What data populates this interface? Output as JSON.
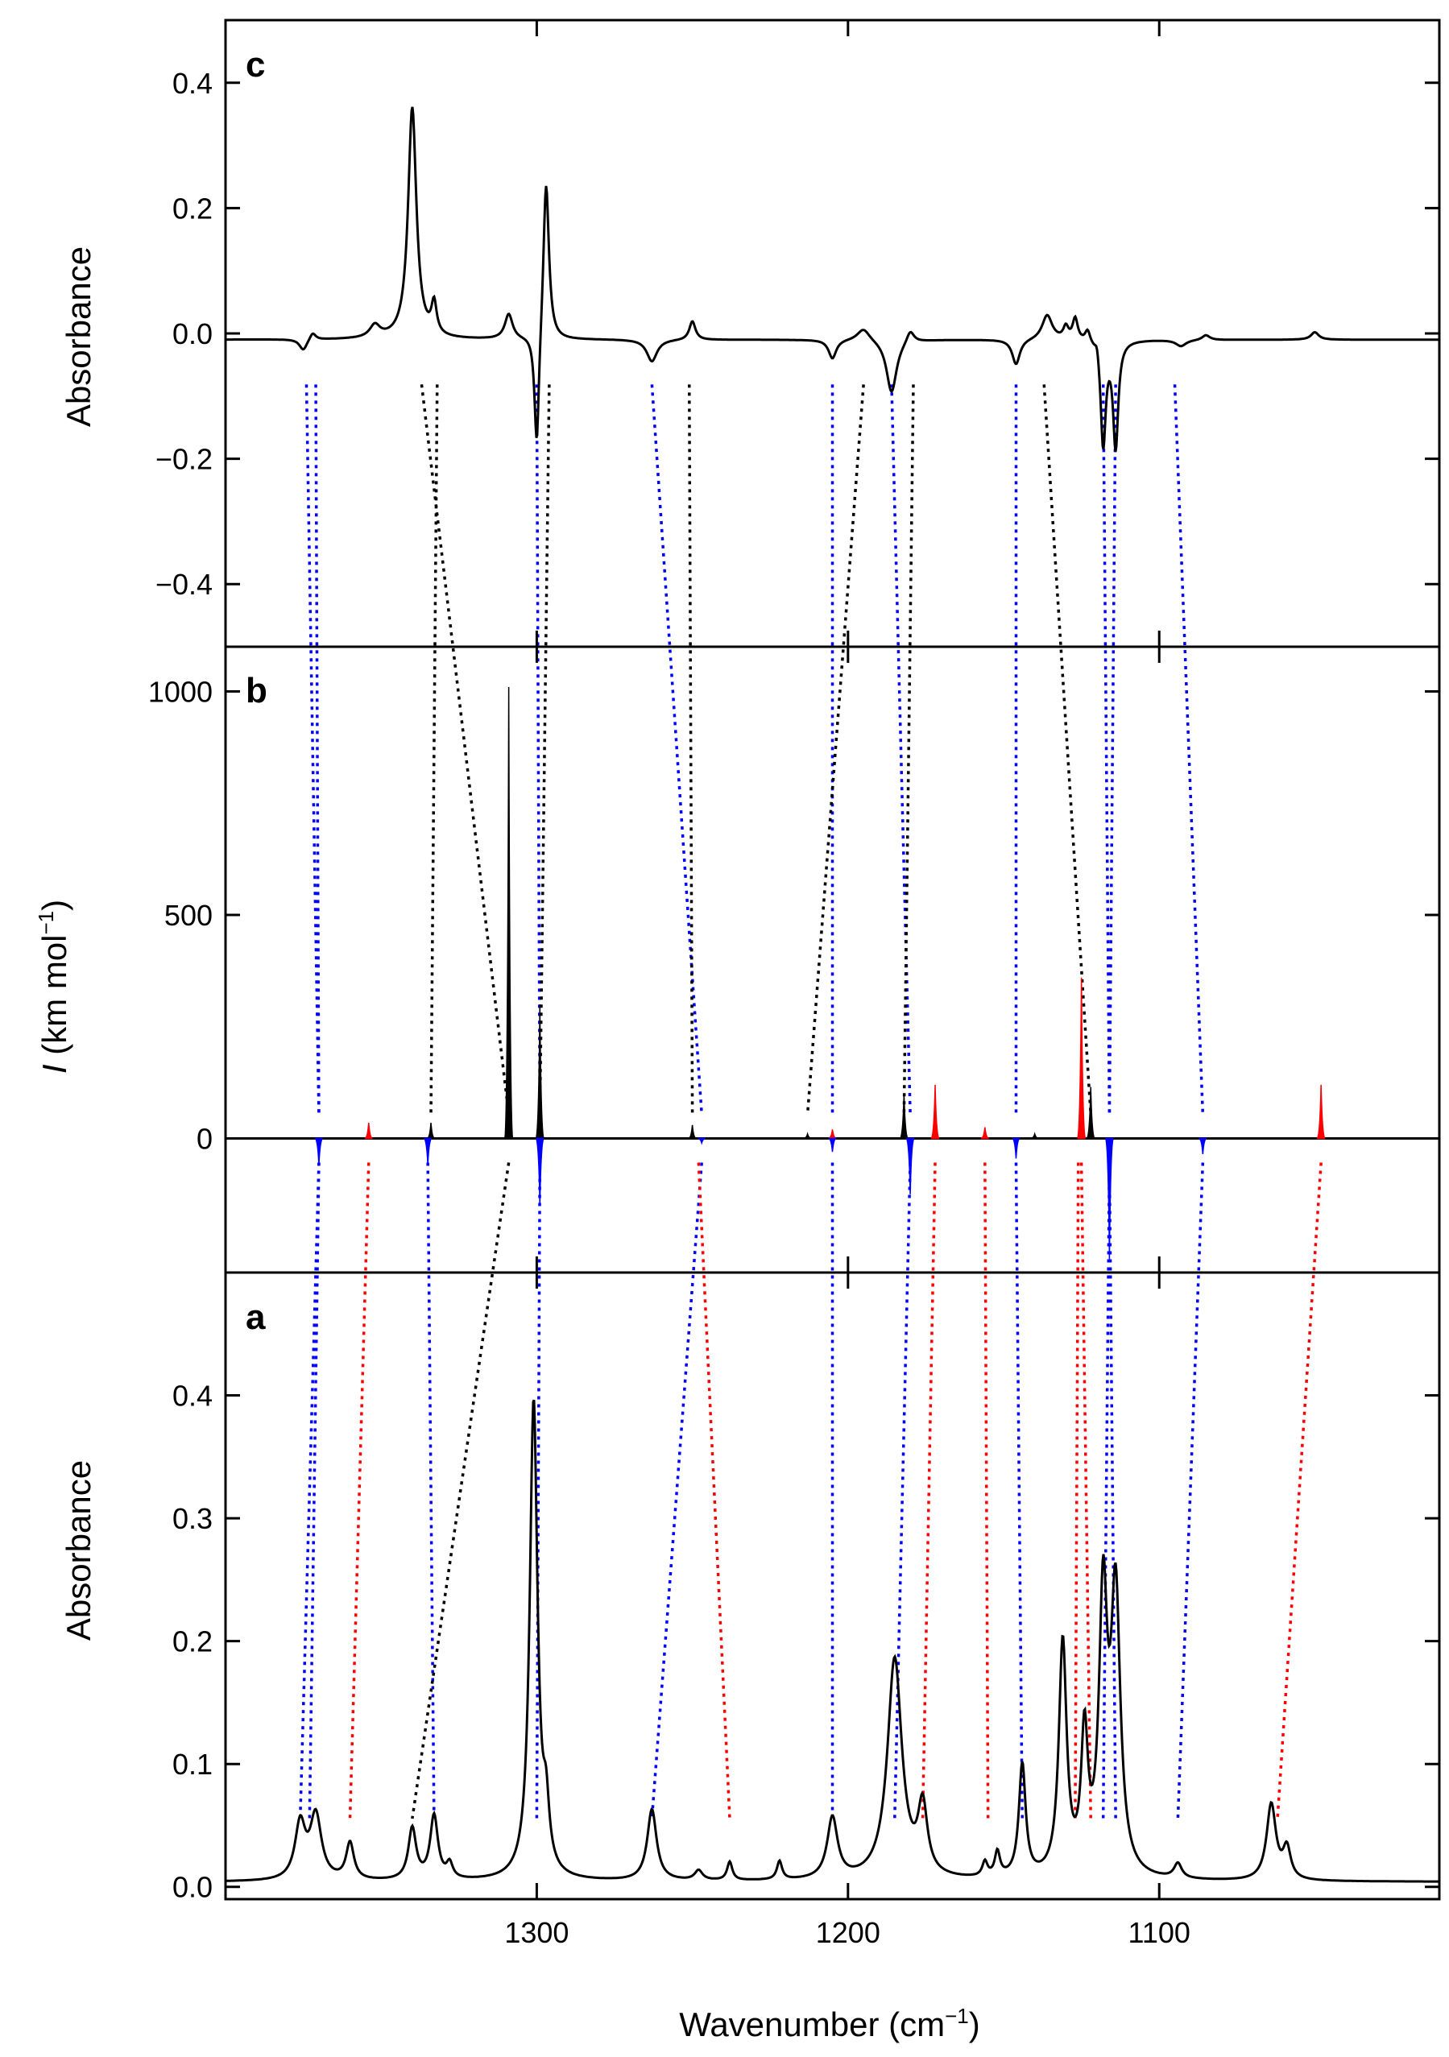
{
  "chart_data": {
    "type": "line",
    "x_axis": {
      "label": "Wavenumber (cm",
      "label_sup": "−1",
      "label_close": ")",
      "range": [
        1400,
        1010
      ],
      "ticks": [
        1300,
        1200,
        1100
      ],
      "tick_labels": [
        "1300",
        "1200",
        "1100"
      ]
    },
    "panels": [
      {
        "id": "c",
        "letter": "c",
        "ylabel": "Absorbance",
        "ylim": [
          -0.5,
          0.5
        ],
        "yticks": [
          0.4,
          0.2,
          0.0,
          -0.2,
          -0.4
        ],
        "ytick_labels": [
          "0.4",
          "0.2",
          "0.0",
          "−0.2",
          "−0.4"
        ],
        "series": [
          {
            "name": "difference spectrum",
            "color": "#000000",
            "baseline": -0.01,
            "peaks": [
              [
                1375,
                -0.018,
                1.5
              ],
              [
                1372,
                0.012,
                1.2
              ],
              [
                1352,
                0.02,
                2
              ],
              [
                1340,
                0.37,
                1.6
              ],
              [
                1333,
                0.05,
                1.0
              ],
              [
                1309,
                0.04,
                1.5
              ],
              [
                1300,
                -0.19,
                0.9
              ],
              [
                1297,
                0.26,
                1.1
              ],
              [
                1263,
                -0.035,
                2
              ],
              [
                1250,
                0.03,
                1.2
              ],
              [
                1205,
                -0.03,
                1.5
              ],
              [
                1195,
                0.02,
                2.5
              ],
              [
                1186,
                -0.085,
                2
              ],
              [
                1180,
                0.02,
                1.5
              ],
              [
                1146,
                -0.04,
                1.5
              ],
              [
                1136,
                0.04,
                2
              ],
              [
                1130,
                0.02,
                1
              ],
              [
                1127,
                0.035,
                1.0
              ],
              [
                1123,
                0.02,
                1
              ],
              [
                1120,
                0.02,
                0.8
              ],
              [
                1118,
                -0.17,
                1.0
              ],
              [
                1114,
                -0.17,
                1.0
              ],
              [
                1093,
                -0.01,
                2
              ],
              [
                1085,
                0.008,
                1.5
              ],
              [
                1050,
                0.012,
                1.5
              ]
            ]
          }
        ]
      },
      {
        "id": "b",
        "letter": "b",
        "ylabel": "I (km mol",
        "ylabel_italic": "I",
        "ylabel_rest": " (km mol",
        "ylabel_sup": "−1",
        "ylabel_close": ")",
        "ylim": [
          -300,
          1100
        ],
        "yticks": [
          1000,
          500,
          0
        ],
        "ytick_labels": [
          "1000",
          "500",
          "0"
        ],
        "series": [
          {
            "name": "black sticks",
            "color": "#000000",
            "lines": [
              [
                1334,
                35
              ],
              [
                1309,
                1010
              ],
              [
                1299,
                300
              ],
              [
                1250,
                30
              ],
              [
                1213,
                10
              ],
              [
                1182,
                100
              ],
              [
                1140,
                10
              ],
              [
                1122,
                115
              ]
            ]
          },
          {
            "name": "red sticks",
            "color": "#ff0000",
            "lines": [
              [
                1354,
                35
              ],
              [
                1205,
                20
              ],
              [
                1172,
                120
              ],
              [
                1156,
                25
              ],
              [
                1125,
                360
              ],
              [
                1048,
                120
              ]
            ]
          },
          {
            "name": "blue sticks",
            "color": "#0000ff",
            "lines": [
              [
                1370,
                -60
              ],
              [
                1335,
                -60
              ],
              [
                1299,
                -150
              ],
              [
                1247,
                -10
              ],
              [
                1205,
                -30
              ],
              [
                1180,
                -125
              ],
              [
                1146,
                -45
              ],
              [
                1116,
                -270
              ],
              [
                1086,
                -35
              ]
            ]
          }
        ]
      },
      {
        "id": "a",
        "letter": "a",
        "ylabel": "Absorbance",
        "ylim": [
          -0.01,
          0.5
        ],
        "yticks": [
          0.4,
          0.3,
          0.2,
          0.1,
          0.0
        ],
        "ytick_labels": [
          "0.4",
          "0.3",
          "0.2",
          "0.1",
          "0.0"
        ],
        "series": [
          {
            "name": "matrix spectrum",
            "color": "#000000",
            "baseline": 0.004,
            "peaks": [
              [
                1376,
                0.045,
                2
              ],
              [
                1371,
                0.052,
                2.2
              ],
              [
                1360,
                0.03,
                1.5
              ],
              [
                1340,
                0.042,
                1.5
              ],
              [
                1333,
                0.052,
                1.5
              ],
              [
                1328,
                0.012,
                1.2
              ],
              [
                1301,
                0.39,
                1.5
              ],
              [
                1297,
                0.045,
                1.2
              ],
              [
                1263,
                0.058,
                1.8
              ],
              [
                1248,
                0.008,
                1.5
              ],
              [
                1238,
                0.015,
                1.0
              ],
              [
                1222,
                0.015,
                1.0
              ],
              [
                1205,
                0.05,
                2
              ],
              [
                1185,
                0.18,
                2.8
              ],
              [
                1176,
                0.055,
                1.8
              ],
              [
                1156,
                0.012,
                1
              ],
              [
                1152,
                0.02,
                1
              ],
              [
                1144,
                0.092,
                1.3
              ],
              [
                1131,
                0.19,
                1.5
              ],
              [
                1124,
                0.11,
                1.3
              ],
              [
                1118,
                0.22,
                1.6
              ],
              [
                1114,
                0.225,
                1.8
              ],
              [
                1094,
                0.012,
                1.5
              ],
              [
                1064,
                0.062,
                1.8
              ],
              [
                1059,
                0.025,
                1.5
              ]
            ]
          }
        ]
      }
    ],
    "correlation_lines": {
      "c_to_b": [
        {
          "color": "#0000ff",
          "top": 1371,
          "bottom": 1370
        },
        {
          "color": "#0000ff",
          "top": 1374,
          "bottom": 1370
        },
        {
          "color": "#000000",
          "top": 1332,
          "bottom": 1334
        },
        {
          "color": "#000000",
          "top": 1337,
          "bottom": 1309
        },
        {
          "color": "#0000ff",
          "top": 1300,
          "bottom": 1299
        },
        {
          "color": "#000000",
          "top": 1296,
          "bottom": 1299
        },
        {
          "color": "#0000ff",
          "top": 1263,
          "bottom": 1247
        },
        {
          "color": "#000000",
          "top": 1251,
          "bottom": 1250
        },
        {
          "color": "#0000ff",
          "top": 1205,
          "bottom": 1205
        },
        {
          "color": "#000000",
          "top": 1195,
          "bottom": 1213
        },
        {
          "color": "#0000ff",
          "top": 1186,
          "bottom": 1180
        },
        {
          "color": "#000000",
          "top": 1179,
          "bottom": 1182
        },
        {
          "color": "#0000ff",
          "top": 1146,
          "bottom": 1146
        },
        {
          "color": "#000000",
          "top": 1137,
          "bottom": 1122
        },
        {
          "color": "#0000ff",
          "top": 1118,
          "bottom": 1116
        },
        {
          "color": "#0000ff",
          "top": 1114,
          "bottom": 1116
        },
        {
          "color": "#0000ff",
          "top": 1095,
          "bottom": 1086
        }
      ],
      "b_to_a": [
        {
          "color": "#0000ff",
          "top": 1370,
          "bottom": 1376
        },
        {
          "color": "#0000ff",
          "top": 1370,
          "bottom": 1373
        },
        {
          "color": "#ff0000",
          "top": 1354,
          "bottom": 1360
        },
        {
          "color": "#0000ff",
          "top": 1335,
          "bottom": 1333
        },
        {
          "color": "#000000",
          "top": 1309,
          "bottom": 1340
        },
        {
          "color": "#0000ff",
          "top": 1299,
          "bottom": 1300
        },
        {
          "color": "#0000ff",
          "top": 1247,
          "bottom": 1263
        },
        {
          "color": "#ff0000",
          "top": 1248,
          "bottom": 1238
        },
        {
          "color": "#0000ff",
          "top": 1205,
          "bottom": 1205
        },
        {
          "color": "#0000ff",
          "top": 1180,
          "bottom": 1185
        },
        {
          "color": "#ff0000",
          "top": 1172,
          "bottom": 1176
        },
        {
          "color": "#ff0000",
          "top": 1156,
          "bottom": 1155
        },
        {
          "color": "#0000ff",
          "top": 1146,
          "bottom": 1144
        },
        {
          "color": "#ff0000",
          "top": 1126,
          "bottom": 1127
        },
        {
          "color": "#ff0000",
          "top": 1125,
          "bottom": 1122
        },
        {
          "color": "#0000ff",
          "top": 1116,
          "bottom": 1118
        },
        {
          "color": "#0000ff",
          "top": 1116,
          "bottom": 1114
        },
        {
          "color": "#0000ff",
          "top": 1086,
          "bottom": 1094
        },
        {
          "color": "#ff0000",
          "top": 1048,
          "bottom": 1062
        }
      ]
    }
  }
}
